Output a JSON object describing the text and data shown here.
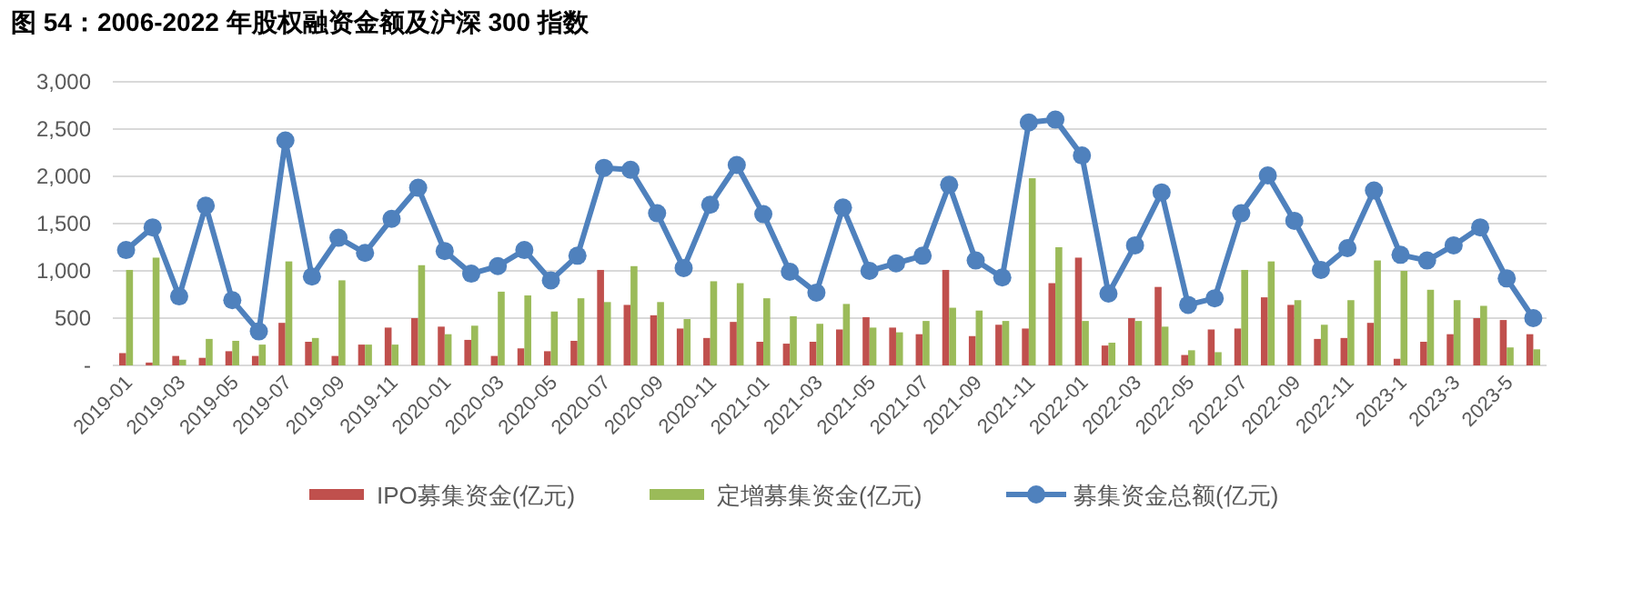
{
  "chart_data": {
    "type": "bar",
    "title": "图 54：2006-2022 年股权融资金额及沪深 300 指数",
    "categories": [
      "2019-01",
      null,
      "2019-03",
      null,
      "2019-05",
      null,
      "2019-07",
      null,
      "2019-09",
      null,
      "2019-11",
      null,
      "2020-01",
      null,
      "2020-03",
      null,
      "2020-05",
      null,
      "2020-07",
      null,
      "2020-09",
      null,
      "2020-11",
      null,
      "2021-01",
      null,
      "2021-03",
      null,
      "2021-05",
      null,
      "2021-07",
      null,
      "2021-09",
      null,
      "2021-11",
      null,
      "2022-01",
      null,
      "2022-03",
      null,
      "2022-05",
      null,
      "2022-07",
      null,
      "2022-09",
      null,
      "2022-11",
      null,
      "2023-1",
      null,
      "2023-3",
      null,
      "2023-5",
      null
    ],
    "series": [
      {
        "name": "IPO募集资金(亿元)",
        "color": "#c0504d",
        "values": [
          130,
          30,
          100,
          80,
          150,
          100,
          450,
          250,
          100,
          220,
          400,
          500,
          410,
          270,
          100,
          180,
          150,
          260,
          1010,
          640,
          530,
          390,
          290,
          460,
          250,
          230,
          250,
          380,
          510,
          400,
          330,
          1010,
          310,
          430,
          390,
          870,
          1140,
          210,
          500,
          830,
          110,
          380,
          390,
          720,
          640,
          280,
          290,
          450,
          70,
          250,
          330,
          500,
          480,
          330
        ]
      },
      {
        "name": "定增募集资金(亿元)",
        "color": "#9bbb59",
        "values": [
          1010,
          1140,
          60,
          280,
          260,
          220,
          1100,
          290,
          900,
          220,
          220,
          1060,
          330,
          420,
          780,
          740,
          570,
          710,
          670,
          1050,
          670,
          490,
          890,
          870,
          710,
          520,
          440,
          650,
          400,
          350,
          470,
          610,
          580,
          470,
          1980,
          1250,
          470,
          240,
          470,
          410,
          160,
          140,
          1010,
          1100,
          690,
          430,
          690,
          1110,
          1000,
          800,
          690,
          630,
          190,
          170
        ]
      },
      {
        "name": "募集资金总额(亿元)",
        "type": "line",
        "color": "#4f81bd",
        "marker": "circle",
        "values": [
          1220,
          1460,
          730,
          1690,
          690,
          360,
          2380,
          940,
          1350,
          1190,
          1550,
          1880,
          1210,
          970,
          1050,
          1220,
          900,
          1160,
          2090,
          2070,
          1610,
          1030,
          1700,
          2120,
          1600,
          990,
          770,
          1670,
          1000,
          1080,
          1160,
          1910,
          1110,
          930,
          2570,
          2600,
          2220,
          760,
          1270,
          1830,
          640,
          710,
          1610,
          2010,
          1530,
          1010,
          1240,
          1850,
          1170,
          1110,
          1270,
          1460,
          920,
          500
        ]
      }
    ],
    "ylim": [
      0,
      3000
    ],
    "yticks": [
      {
        "value": 0,
        "label": "-"
      },
      {
        "value": 500,
        "label": "500"
      },
      {
        "value": 1000,
        "label": "1,000"
      },
      {
        "value": 1500,
        "label": "1,500"
      },
      {
        "value": 2000,
        "label": "2,000"
      },
      {
        "value": 2500,
        "label": "2,500"
      },
      {
        "value": 3000,
        "label": "3,000"
      }
    ],
    "grid": "y",
    "legend": "bottom"
  }
}
